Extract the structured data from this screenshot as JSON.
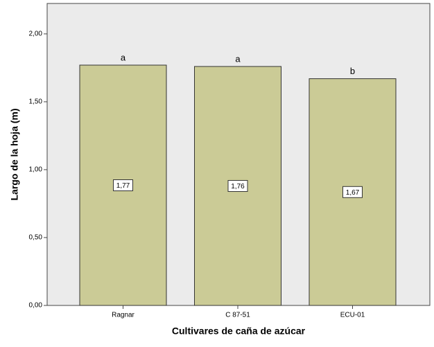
{
  "chart_data": {
    "type": "bar",
    "xlabel": "Cultivares de caña de azúcar",
    "ylabel": "Largo de la hoja (m)",
    "categories": [
      "Ragnar",
      "C 87-51",
      "ECU-01"
    ],
    "values": [
      1.77,
      1.76,
      1.67
    ],
    "value_labels": [
      "1,77",
      "1,76",
      "1,67"
    ],
    "annotations": [
      "a",
      "a",
      "b"
    ],
    "color": "#cbcb96",
    "ylim": [
      0,
      2.224
    ],
    "yticks": [
      {
        "value": 0,
        "label": "0,00"
      },
      {
        "value": 0.5,
        "label": "0,50"
      },
      {
        "value": 1,
        "label": "1,00"
      },
      {
        "value": 1.5,
        "label": "1,50"
      },
      {
        "value": 2,
        "label": "2,00"
      }
    ],
    "grid": false
  }
}
